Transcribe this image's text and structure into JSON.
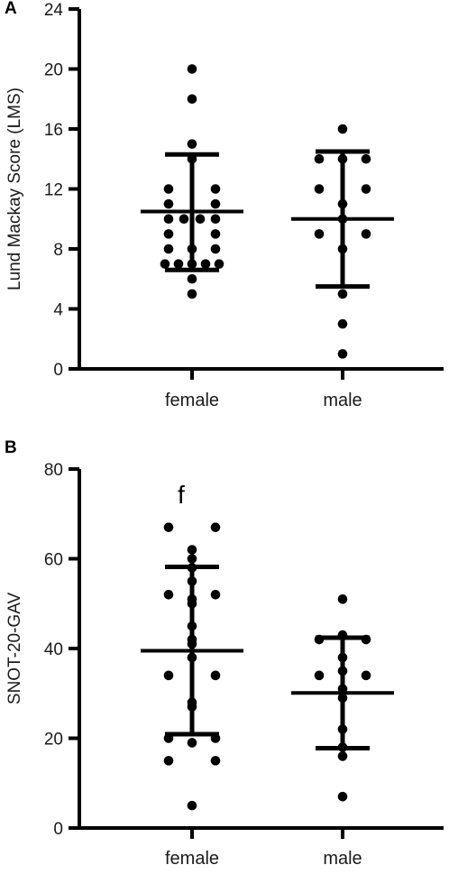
{
  "chart_data": [
    {
      "type": "scatter",
      "panel": "A",
      "ylabel": "Lund Mackay Score (LMS)",
      "xlabel": "",
      "categories": [
        "female",
        "male"
      ],
      "ylim": [
        0,
        24
      ],
      "yticks": [
        0,
        4,
        8,
        12,
        16,
        20,
        24
      ],
      "annotation": "",
      "groups": [
        {
          "category": "female",
          "points": [
            20,
            18,
            15,
            14,
            12,
            12,
            11,
            11,
            10,
            10,
            10,
            10,
            9,
            9,
            8,
            8,
            8,
            7,
            7,
            7,
            7,
            7,
            6,
            5
          ],
          "mean": 10.5,
          "sd_low": 6.6,
          "sd_high": 14.3
        },
        {
          "category": "male",
          "points": [
            16,
            14,
            14,
            14,
            12,
            12,
            11,
            10,
            9,
            9,
            8,
            5,
            3,
            1
          ],
          "mean": 10.0,
          "sd_low": 5.5,
          "sd_high": 14.5
        }
      ]
    },
    {
      "type": "scatter",
      "panel": "B",
      "ylabel": "SNOT-20-GAV",
      "xlabel": "",
      "categories": [
        "female",
        "male"
      ],
      "ylim": [
        0,
        80
      ],
      "yticks": [
        0,
        20,
        40,
        60,
        80
      ],
      "annotation": "f",
      "groups": [
        {
          "category": "female",
          "points": [
            67,
            67,
            62,
            60,
            58,
            55,
            52,
            52,
            51,
            50,
            45,
            42,
            41,
            38,
            34,
            34,
            28,
            27,
            20,
            20,
            19,
            15,
            15,
            5
          ],
          "mean": 39.5,
          "sd_low": 20.9,
          "sd_high": 58.2
        },
        {
          "category": "male",
          "points": [
            51,
            43,
            42,
            42,
            38,
            35,
            34,
            34,
            31,
            29,
            22,
            18,
            16,
            7
          ],
          "mean": 30.1,
          "sd_low": 17.8,
          "sd_high": 42.4
        }
      ]
    }
  ]
}
